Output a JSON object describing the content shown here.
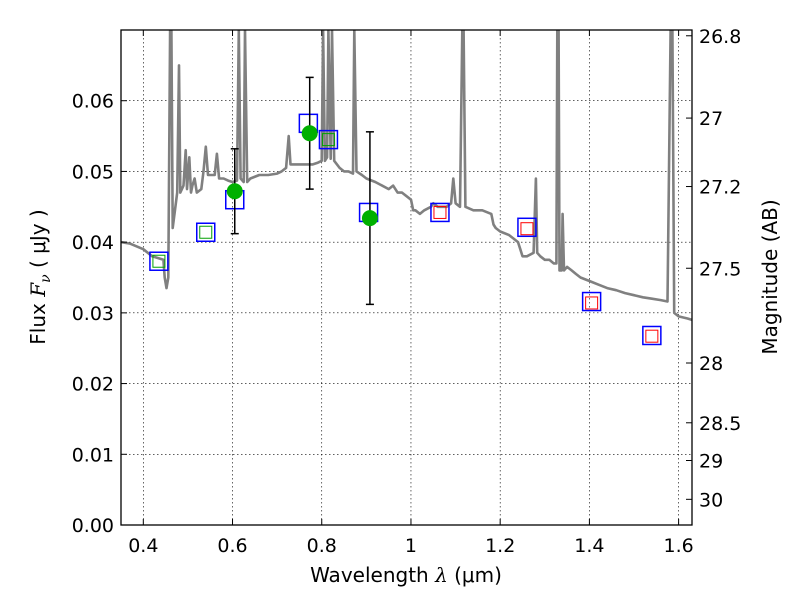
{
  "chart_data": {
    "type": "scatter",
    "xlabel": {
      "prefix": "Wavelength  ",
      "symbol": "λ",
      "suffix": " (μm)"
    },
    "ylabel": {
      "prefix": "Flux  ",
      "symbol": "F",
      "subscript": "ν",
      "suffix": "  ( μJy )"
    },
    "y2label": "Magnitude (AB)",
    "xlim": [
      0.35,
      1.63
    ],
    "ylim": [
      0.0,
      0.07
    ],
    "grid": true,
    "x_ticks": [
      {
        "value": 0.4,
        "label": "0.4"
      },
      {
        "value": 0.6,
        "label": "0.6"
      },
      {
        "value": 0.8,
        "label": "0.8"
      },
      {
        "value": 1.0,
        "label": "1"
      },
      {
        "value": 1.2,
        "label": "1.2"
      },
      {
        "value": 1.4,
        "label": "1.4"
      },
      {
        "value": 1.6,
        "label": "1.6"
      }
    ],
    "y_ticks": [
      {
        "value": 0.0,
        "label": "0.00"
      },
      {
        "value": 0.01,
        "label": "0.01"
      },
      {
        "value": 0.02,
        "label": "0.02"
      },
      {
        "value": 0.03,
        "label": "0.03"
      },
      {
        "value": 0.04,
        "label": "0.04"
      },
      {
        "value": 0.05,
        "label": "0.05"
      },
      {
        "value": 0.06,
        "label": "0.06"
      }
    ],
    "y2_ticks": [
      {
        "value": 26.8,
        "label": "26.8"
      },
      {
        "value": 27.0,
        "label": "27"
      },
      {
        "value": 27.2,
        "label": "27.2"
      },
      {
        "value": 27.5,
        "label": "27.5"
      },
      {
        "value": 28.0,
        "label": "28"
      },
      {
        "value": 28.5,
        "label": "28.5"
      },
      {
        "value": 29.0,
        "label": "29"
      },
      {
        "value": 30.0,
        "label": "30"
      }
    ],
    "series": [
      {
        "name": "model SED",
        "kind": "line",
        "color": "#808080",
        "points": [
          [
            0.35,
            0.04
          ],
          [
            0.37,
            0.0398
          ],
          [
            0.4,
            0.039
          ],
          [
            0.42,
            0.038
          ],
          [
            0.445,
            0.0375
          ],
          [
            0.448,
            0.035
          ],
          [
            0.452,
            0.0335
          ],
          [
            0.456,
            0.035
          ],
          [
            0.46,
            0.07
          ],
          [
            0.463,
            0.07
          ],
          [
            0.466,
            0.042
          ],
          [
            0.47,
            0.044
          ],
          [
            0.476,
            0.047
          ],
          [
            0.48,
            0.065
          ],
          [
            0.483,
            0.047
          ],
          [
            0.49,
            0.048
          ],
          [
            0.495,
            0.053
          ],
          [
            0.498,
            0.0475
          ],
          [
            0.503,
            0.052
          ],
          [
            0.507,
            0.047
          ],
          [
            0.51,
            0.048
          ],
          [
            0.515,
            0.049
          ],
          [
            0.52,
            0.047
          ],
          [
            0.53,
            0.0475
          ],
          [
            0.535,
            0.05
          ],
          [
            0.54,
            0.0535
          ],
          [
            0.545,
            0.0495
          ],
          [
            0.55,
            0.0495
          ],
          [
            0.56,
            0.0495
          ],
          [
            0.565,
            0.0525
          ],
          [
            0.57,
            0.049
          ],
          [
            0.58,
            0.049
          ],
          [
            0.59,
            0.0487
          ],
          [
            0.6,
            0.0485
          ],
          [
            0.61,
            0.0487
          ],
          [
            0.614,
            0.07
          ],
          [
            0.618,
            0.049
          ],
          [
            0.625,
            0.0485
          ],
          [
            0.628,
            0.07
          ],
          [
            0.633,
            0.0485
          ],
          [
            0.64,
            0.049
          ],
          [
            0.66,
            0.0495
          ],
          [
            0.68,
            0.0495
          ],
          [
            0.7,
            0.0497
          ],
          [
            0.71,
            0.05
          ],
          [
            0.72,
            0.0505
          ],
          [
            0.726,
            0.055
          ],
          [
            0.73,
            0.051
          ],
          [
            0.74,
            0.051
          ],
          [
            0.75,
            0.051
          ],
          [
            0.76,
            0.051
          ],
          [
            0.77,
            0.051
          ],
          [
            0.78,
            0.051
          ],
          [
            0.79,
            0.0512
          ],
          [
            0.8,
            0.0515
          ],
          [
            0.803,
            0.07
          ],
          [
            0.807,
            0.0515
          ],
          [
            0.812,
            0.052
          ],
          [
            0.815,
            0.07
          ],
          [
            0.82,
            0.0518
          ],
          [
            0.823,
            0.07
          ],
          [
            0.828,
            0.0515
          ],
          [
            0.84,
            0.0505
          ],
          [
            0.85,
            0.05
          ],
          [
            0.86,
            0.05
          ],
          [
            0.87,
            0.0497
          ],
          [
            0.873,
            0.07
          ],
          [
            0.878,
            0.05
          ],
          [
            0.89,
            0.0495
          ],
          [
            0.9,
            0.049
          ],
          [
            0.92,
            0.0485
          ],
          [
            0.95,
            0.0475
          ],
          [
            0.96,
            0.048
          ],
          [
            0.97,
            0.047
          ],
          [
            0.98,
            0.047
          ],
          [
            1.0,
            0.046
          ],
          [
            1.005,
            0.0445
          ],
          [
            1.01,
            0.0445
          ],
          [
            1.02,
            0.044
          ],
          [
            1.03,
            0.0445
          ],
          [
            1.045,
            0.045
          ],
          [
            1.05,
            0.0455
          ],
          [
            1.06,
            0.045
          ],
          [
            1.08,
            0.045
          ],
          [
            1.09,
            0.0455
          ],
          [
            1.095,
            0.049
          ],
          [
            1.1,
            0.0455
          ],
          [
            1.11,
            0.045
          ],
          [
            1.115,
            0.07
          ],
          [
            1.118,
            0.07
          ],
          [
            1.122,
            0.045
          ],
          [
            1.14,
            0.0445
          ],
          [
            1.16,
            0.0445
          ],
          [
            1.18,
            0.044
          ],
          [
            1.185,
            0.0425
          ],
          [
            1.19,
            0.042
          ],
          [
            1.2,
            0.0415
          ],
          [
            1.22,
            0.041
          ],
          [
            1.23,
            0.0405
          ],
          [
            1.24,
            0.04
          ],
          [
            1.245,
            0.039
          ],
          [
            1.25,
            0.038
          ],
          [
            1.26,
            0.038
          ],
          [
            1.275,
            0.0385
          ],
          [
            1.28,
            0.049
          ],
          [
            1.283,
            0.0385
          ],
          [
            1.29,
            0.038
          ],
          [
            1.3,
            0.0375
          ],
          [
            1.31,
            0.0375
          ],
          [
            1.32,
            0.037
          ],
          [
            1.326,
            0.037
          ],
          [
            1.328,
            0.07
          ],
          [
            1.331,
            0.07
          ],
          [
            1.333,
            0.036
          ],
          [
            1.338,
            0.036
          ],
          [
            1.34,
            0.044
          ],
          [
            1.343,
            0.036
          ],
          [
            1.35,
            0.0365
          ],
          [
            1.36,
            0.036
          ],
          [
            1.37,
            0.0355
          ],
          [
            1.38,
            0.035
          ],
          [
            1.4,
            0.0345
          ],
          [
            1.42,
            0.034
          ],
          [
            1.44,
            0.0335
          ],
          [
            1.46,
            0.0332
          ],
          [
            1.48,
            0.0328
          ],
          [
            1.5,
            0.0325
          ],
          [
            1.52,
            0.0322
          ],
          [
            1.54,
            0.032
          ],
          [
            1.56,
            0.0318
          ],
          [
            1.575,
            0.0316
          ],
          [
            1.582,
            0.07
          ],
          [
            1.586,
            0.07
          ],
          [
            1.59,
            0.03
          ],
          [
            1.6,
            0.0295
          ],
          [
            1.62,
            0.0292
          ],
          [
            1.63,
            0.029
          ]
        ]
      },
      {
        "name": "observed (blue squares)",
        "kind": "square",
        "color": "#0000ff",
        "points": [
          [
            0.435,
            0.0373
          ],
          [
            0.54,
            0.0414
          ],
          [
            0.605,
            0.046
          ],
          [
            0.77,
            0.0568
          ],
          [
            0.815,
            0.0545
          ],
          [
            0.905,
            0.0442
          ],
          [
            1.065,
            0.0442
          ],
          [
            1.26,
            0.0421
          ],
          [
            1.405,
            0.0316
          ],
          [
            1.54,
            0.0268
          ]
        ]
      },
      {
        "name": "model (green squares)",
        "kind": "square-small",
        "color": "#00a000",
        "points": [
          [
            0.435,
            0.0373
          ],
          [
            0.54,
            0.0414
          ],
          [
            0.815,
            0.0545
          ]
        ]
      },
      {
        "name": "model (red squares)",
        "kind": "square-small",
        "color": "#ff0000",
        "points": [
          [
            1.065,
            0.0442
          ],
          [
            1.26,
            0.0419
          ],
          [
            1.405,
            0.0314
          ],
          [
            1.54,
            0.0267
          ]
        ]
      },
      {
        "name": "measured (green circles)",
        "kind": "circle",
        "color": "#00b000",
        "points": [
          {
            "x": 0.605,
            "y": 0.0472,
            "err_low": 0.0412,
            "err_high": 0.0532
          },
          {
            "x": 0.773,
            "y": 0.0554,
            "err_low": 0.0475,
            "err_high": 0.0633
          },
          {
            "x": 0.908,
            "y": 0.0434,
            "err_low": 0.0312,
            "err_high": 0.0556
          }
        ]
      }
    ]
  }
}
